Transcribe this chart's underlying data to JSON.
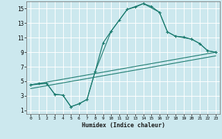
{
  "title": "",
  "xlabel": "Humidex (Indice chaleur)",
  "bg_color": "#cce8ee",
  "grid_color": "#ffffff",
  "line_color": "#1a7a6e",
  "xlim": [
    -0.5,
    23.5
  ],
  "ylim": [
    0.5,
    16
  ],
  "xticks": [
    0,
    1,
    2,
    3,
    4,
    5,
    6,
    7,
    8,
    9,
    10,
    11,
    12,
    13,
    14,
    15,
    16,
    17,
    18,
    19,
    20,
    21,
    22,
    23
  ],
  "yticks": [
    1,
    3,
    5,
    7,
    9,
    11,
    13,
    15
  ],
  "curve1_x": [
    0,
    1,
    2,
    3,
    4,
    5,
    6,
    7,
    8,
    9,
    10,
    11,
    12,
    13,
    14,
    15,
    16,
    17,
    18,
    19,
    20,
    21,
    22,
    23
  ],
  "curve1_y": [
    4.5,
    4.7,
    4.7,
    3.2,
    3.1,
    1.5,
    1.9,
    2.5,
    6.3,
    10.3,
    11.9,
    13.4,
    14.9,
    15.2,
    15.7,
    15.3,
    14.5,
    11.8,
    11.2,
    11.1,
    10.8,
    10.2,
    9.2,
    9.0
  ],
  "curve2_x": [
    0,
    2,
    3,
    4,
    5,
    6,
    7,
    8,
    10,
    12,
    14,
    16,
    17,
    18,
    20,
    21,
    22,
    23
  ],
  "curve2_y": [
    4.5,
    4.7,
    3.2,
    3.1,
    1.5,
    1.9,
    2.5,
    6.3,
    11.9,
    14.9,
    15.7,
    14.5,
    11.8,
    11.2,
    10.8,
    10.2,
    9.2,
    9.0
  ],
  "line1_x": [
    0,
    23
  ],
  "line1_y": [
    4.5,
    9.0
  ],
  "line2_x": [
    0,
    23
  ],
  "line2_y": [
    4.0,
    8.5
  ]
}
